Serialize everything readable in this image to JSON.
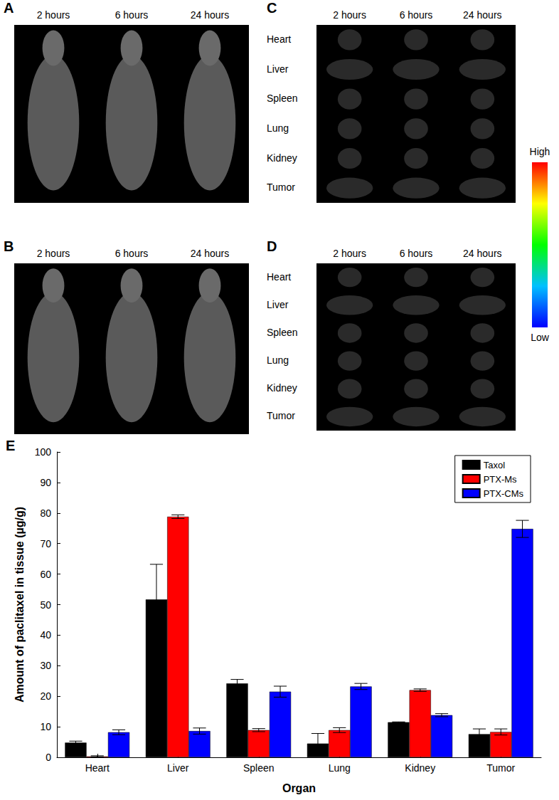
{
  "panels": {
    "A": {
      "label": "A",
      "times": [
        "2 hours",
        "6 hours",
        "24 hours"
      ]
    },
    "B": {
      "label": "B",
      "times": [
        "2 hours",
        "6 hours",
        "24 hours"
      ]
    },
    "C": {
      "label": "C",
      "times": [
        "2 hours",
        "6 hours",
        "24 hours"
      ],
      "organs": [
        "Heart",
        "Liver",
        "Spleen",
        "Lung",
        "Kidney",
        "Tumor"
      ]
    },
    "D": {
      "label": "D",
      "times": [
        "2 hours",
        "6 hours",
        "24 hours"
      ],
      "organs": [
        "Heart",
        "Liver",
        "Spleen",
        "Lung",
        "Kidney",
        "Tumor"
      ]
    },
    "colorbar": {
      "high": "High",
      "low": "Low"
    }
  },
  "chart_data": {
    "type": "bar",
    "panel_label": "E",
    "x_label": "Organ",
    "y_label": "Amount of paclitaxel in tissue (µg/g)",
    "categories": [
      "Heart",
      "Liver",
      "Spleen",
      "Lung",
      "Kidney",
      "Tumor"
    ],
    "series": [
      {
        "name": "Taxol",
        "color": "#000000",
        "values": [
          4.8,
          51.7,
          24.2,
          4.5,
          11.5,
          7.6
        ],
        "errors": [
          0.5,
          11.5,
          1.3,
          3.3,
          0.1,
          1.7
        ]
      },
      {
        "name": "PTX-Ms",
        "color": "#ff0000",
        "values": [
          0.3,
          78.8,
          8.9,
          8.9,
          22.0,
          8.3
        ],
        "errors": [
          0.2,
          0.6,
          0.5,
          0.8,
          0.4,
          1.0
        ]
      },
      {
        "name": "PTX-CMs",
        "color": "#0000ff",
        "values": [
          8.2,
          8.6,
          21.5,
          23.2,
          13.8,
          74.8
        ],
        "errors": [
          0.8,
          1.0,
          1.8,
          1.0,
          0.5,
          2.8
        ]
      }
    ],
    "ylim": [
      0,
      100
    ],
    "yticks": [
      0,
      10,
      20,
      30,
      40,
      50,
      60,
      70,
      80,
      90,
      100
    ],
    "grid": false,
    "legend": "top-right"
  }
}
